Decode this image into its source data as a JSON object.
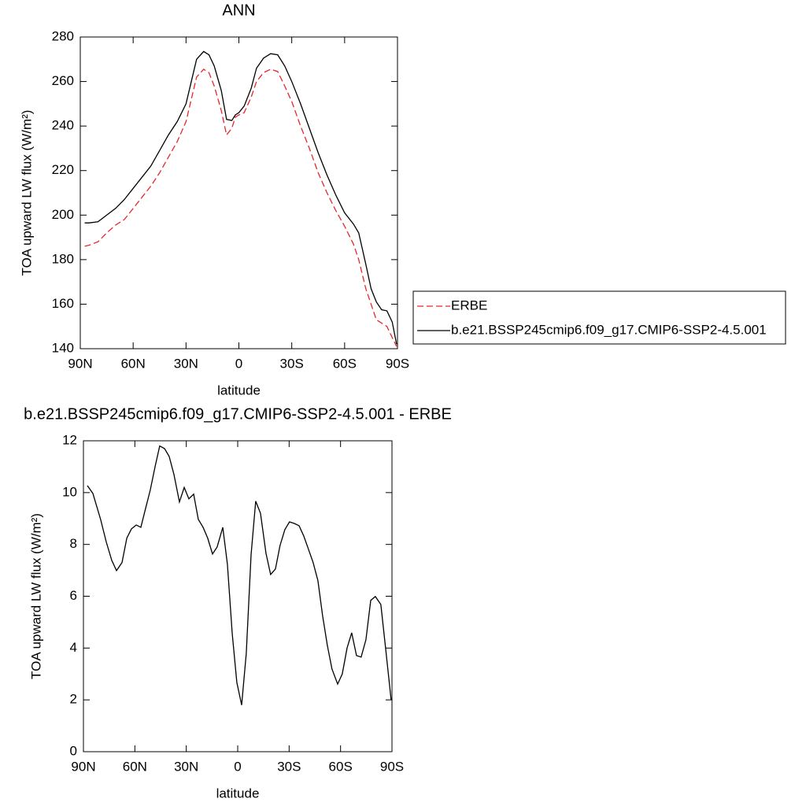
{
  "chart_data": [
    {
      "type": "line",
      "title": "ANN",
      "xlabel": "latitude",
      "ylabel": "TOA upward LW flux (W/m²)",
      "xlim": [
        90,
        -90
      ],
      "xticks": [
        {
          "value": 90,
          "label": "90N"
        },
        {
          "value": 60,
          "label": "60N"
        },
        {
          "value": 30,
          "label": "30N"
        },
        0,
        {
          "value": -30,
          "label": "30S"
        },
        {
          "value": -60,
          "label": "60S"
        },
        {
          "value": -90,
          "label": "90S"
        }
      ],
      "ylim": [
        140,
        280
      ],
      "yticks": [
        140,
        160,
        180,
        200,
        220,
        240,
        260,
        280
      ],
      "legend": "right",
      "series": [
        {
          "name": "ERBE",
          "color": "#e8262a",
          "linestyle": "dashed",
          "x": [
            87.5,
            85,
            80,
            75,
            70,
            65,
            60,
            55,
            50,
            45,
            40,
            35,
            30,
            27,
            24,
            20,
            17,
            14,
            10,
            7,
            4,
            2,
            0,
            -3,
            -7,
            -10,
            -14,
            -18,
            -22,
            -26,
            -30,
            -35,
            -40,
            -45,
            -50,
            -55,
            -60,
            -65,
            -68,
            -72,
            -75,
            -78,
            -81,
            -84,
            -87,
            -89.5
          ],
          "values": [
            186,
            186.5,
            188,
            192,
            195.5,
            198,
            203,
            208,
            213,
            219,
            226,
            233,
            242,
            252,
            262,
            265.5,
            264,
            258,
            247,
            236,
            239,
            244,
            245,
            246,
            253,
            260,
            264,
            265.5,
            264.5,
            258,
            251,
            240,
            230,
            219,
            210,
            202,
            195,
            187,
            180,
            167,
            160,
            153,
            151.5,
            150,
            145,
            141
          ]
        },
        {
          "name": "b.e21.BSSP245cmip6.f09_g17.CMIP6-SSP2-4.5.001",
          "color": "#000000",
          "linestyle": "solid",
          "x": [
            87.5,
            85,
            80,
            75,
            70,
            65,
            60,
            55,
            50,
            45,
            40,
            35,
            30,
            27,
            24,
            20,
            17,
            14,
            10,
            7,
            4,
            2,
            0,
            -3,
            -7,
            -10,
            -14,
            -18,
            -22,
            -26,
            -30,
            -35,
            -40,
            -45,
            -50,
            -55,
            -60,
            -65,
            -68,
            -72,
            -75,
            -78,
            -81,
            -84,
            -87,
            -89.5
          ],
          "values": [
            196.5,
            196.5,
            197,
            200,
            203,
            207,
            212,
            217,
            222,
            229,
            236,
            242,
            250,
            260,
            270,
            273.5,
            272,
            267,
            256,
            243,
            242.5,
            245,
            246,
            249,
            257,
            266,
            270.5,
            272.5,
            272,
            267,
            260,
            250,
            239,
            228,
            218,
            209,
            201,
            196,
            192,
            178,
            167,
            161,
            157.5,
            157,
            152,
            142
          ]
        }
      ]
    },
    {
      "type": "line",
      "title": "b.e21.BSSP245cmip6.f09_g17.CMIP6-SSP2-4.5.001 - ERBE",
      "xlabel": "latitude",
      "ylabel": "TOA upward LW flux (W/m²)",
      "xlim": [
        90,
        -90
      ],
      "xticks": [
        {
          "value": 90,
          "label": "90N"
        },
        {
          "value": 60,
          "label": "60N"
        },
        {
          "value": 30,
          "label": "30N"
        },
        0,
        {
          "value": -30,
          "label": "30S"
        },
        {
          "value": -60,
          "label": "60S"
        },
        {
          "value": -90,
          "label": "90S"
        }
      ],
      "ylim": [
        0,
        12
      ],
      "yticks": [
        0,
        2,
        4,
        6,
        8,
        10,
        12
      ],
      "series": [
        {
          "color": "#000000",
          "linestyle": "solid",
          "x": [
            87.7,
            84.5,
            80,
            76.7,
            73.5,
            70.7,
            67.5,
            64.7,
            62,
            59.2,
            56.5,
            53.7,
            51,
            48.2,
            45.5,
            42.7,
            40,
            37.2,
            34,
            31.2,
            28.5,
            25.7,
            23,
            20.2,
            17.5,
            14.7,
            12,
            8.7,
            6,
            3.2,
            0.5,
            -2.3,
            -5,
            -7.8,
            -10.5,
            -13.3,
            -16.5,
            -19.2,
            -22,
            -24.7,
            -27.5,
            -30.2,
            -33,
            -35.8,
            -38.5,
            -41.3,
            -44,
            -46.8,
            -49.5,
            -52.3,
            -55,
            -58.3,
            -61,
            -63.8,
            -66.5,
            -69.3,
            -72,
            -74.8,
            -77.6,
            -80.3,
            -83.5,
            -86.3,
            -89.5
          ],
          "values": [
            10.27,
            9.97,
            8.97,
            8.1,
            7.39,
            6.99,
            7.3,
            8.24,
            8.6,
            8.75,
            8.66,
            9.4,
            10.1,
            11.0,
            11.8,
            11.7,
            11.4,
            10.7,
            9.64,
            10.2,
            9.76,
            9.94,
            8.97,
            8.66,
            8.24,
            7.63,
            7.9,
            8.66,
            7.23,
            4.56,
            2.67,
            1.8,
            3.8,
            7.6,
            9.67,
            9.2,
            7.66,
            6.84,
            7.05,
            7.96,
            8.57,
            8.87,
            8.81,
            8.72,
            8.33,
            7.81,
            7.3,
            6.6,
            5.26,
            4.1,
            3.19,
            2.61,
            3.0,
            4.0,
            4.59,
            3.71,
            3.65,
            4.32,
            5.84,
            5.99,
            5.68,
            3.98,
            2.0
          ]
        }
      ]
    }
  ]
}
